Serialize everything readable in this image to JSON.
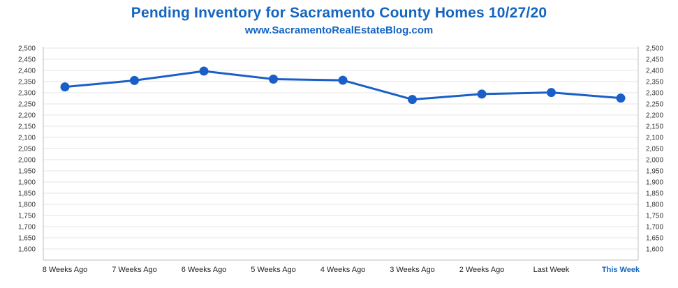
{
  "chart_data": {
    "type": "line",
    "title": "Pending Inventory for Sacramento County Homes 10/27/20",
    "subtitle": "www.SacramentoRealEstateBlog.com",
    "categories": [
      "8 Weeks Ago",
      "7 Weeks Ago",
      "6 Weeks Ago",
      "5 Weeks Ago",
      "4 Weeks Ago",
      "3 Weeks Ago",
      "2 Weeks Ago",
      "Last Week",
      "This Week"
    ],
    "highlight_category": "This Week",
    "series": [
      {
        "name": "Pending Inventory",
        "values": [
          2326,
          2355,
          2397,
          2361,
          2356,
          2270,
          2294,
          2301,
          2276
        ]
      }
    ],
    "ylim": [
      1550,
      2500
    ],
    "yticks": [
      1600,
      1650,
      1700,
      1750,
      1800,
      1850,
      1900,
      1950,
      2000,
      2050,
      2100,
      2150,
      2200,
      2250,
      2300,
      2350,
      2400,
      2450,
      2500
    ],
    "ytick_labels": [
      "1,600",
      "1,650",
      "1,700",
      "1,750",
      "1,800",
      "1,850",
      "1,900",
      "1,950",
      "2,000",
      "2,050",
      "2,100",
      "2,150",
      "2,200",
      "2,250",
      "2,300",
      "2,350",
      "2,400",
      "2,450",
      "2,500"
    ],
    "xlabel": "",
    "ylabel": "",
    "grid": true,
    "colors": {
      "line": "#1a5fc8",
      "title": "#1565c0",
      "grid": "#e6e6e6",
      "axis": "#bdbdbd"
    }
  }
}
